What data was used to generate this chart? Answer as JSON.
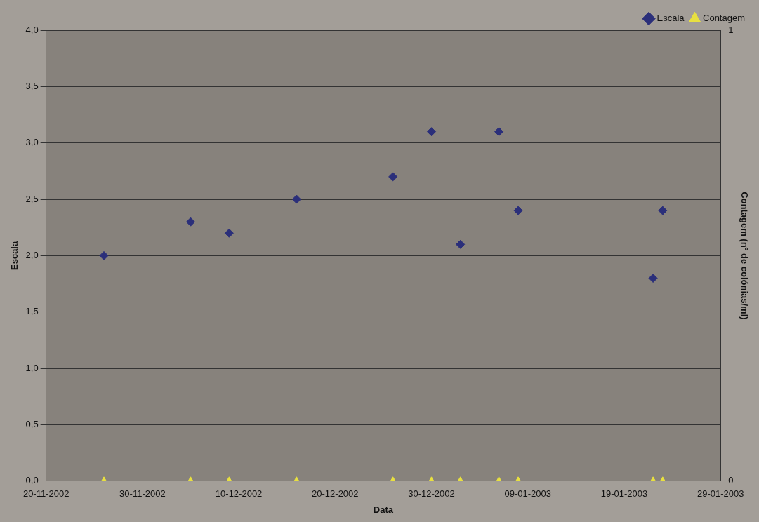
{
  "chart_data": {
    "type": "scatter",
    "xlabel": "Data",
    "ylabel": "Escala",
    "y2label": "Contagem (nº de colónias/ml)",
    "x": [
      "2002-11-26",
      "2002-12-05",
      "2002-12-09",
      "2002-12-16",
      "2002-12-26",
      "2002-12-30",
      "2003-01-02",
      "2003-01-06",
      "2003-01-08",
      "2003-01-22",
      "2003-01-23"
    ],
    "series": [
      {
        "name": "Escala",
        "color": "#2b2f7a",
        "marker": "diamond",
        "values": [
          2.0,
          2.3,
          2.2,
          2.5,
          2.7,
          3.1,
          2.1,
          3.1,
          2.4,
          1.8,
          2.4
        ]
      },
      {
        "name": "Contagem",
        "color": "#e8e040",
        "marker": "triangle",
        "axis": "y2",
        "values": [
          0,
          0,
          0,
          0,
          0,
          0,
          0,
          0,
          0,
          0,
          0
        ]
      }
    ],
    "xlim": [
      "2002-11-20",
      "2003-01-29"
    ],
    "xticks": [
      {
        "value": "2002-11-20",
        "label": "20-11-2002"
      },
      {
        "value": "2002-11-30",
        "label": "30-11-2002"
      },
      {
        "value": "2002-12-10",
        "label": "10-12-2002"
      },
      {
        "value": "2002-12-20",
        "label": "20-12-2002"
      },
      {
        "value": "2002-12-30",
        "label": "30-12-2002"
      },
      {
        "value": "2003-01-09",
        "label": "09-01-2003"
      },
      {
        "value": "2003-01-19",
        "label": "19-01-2003"
      },
      {
        "value": "2003-01-29",
        "label": "29-01-2003"
      }
    ],
    "ylim": [
      0,
      4
    ],
    "yticks": [
      {
        "value": 0,
        "label": "0,0"
      },
      {
        "value": 0.5,
        "label": "0,5"
      },
      {
        "value": 1,
        "label": "1,0"
      },
      {
        "value": 1.5,
        "label": "1,5"
      },
      {
        "value": 2,
        "label": "2,0"
      },
      {
        "value": 2.5,
        "label": "2,5"
      },
      {
        "value": 3,
        "label": "3,0"
      },
      {
        "value": 3.5,
        "label": "3,5"
      },
      {
        "value": 4,
        "label": "4,0"
      }
    ],
    "y2lim": [
      0,
      1
    ],
    "y2ticks": [
      {
        "value": 0,
        "label": "0"
      },
      {
        "value": 1,
        "label": "1"
      }
    ],
    "grid": "y",
    "legend": "top right"
  }
}
